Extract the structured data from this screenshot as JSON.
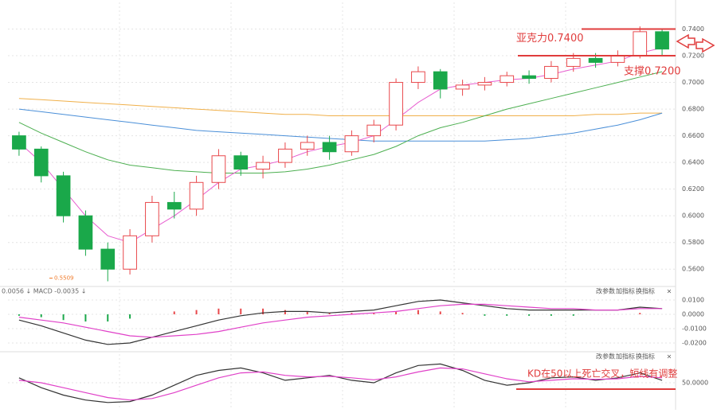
{
  "chart_data": [
    {
      "type": "candlestick",
      "categories": [
        null,
        null,
        null,
        null,
        null,
        null,
        null,
        null,
        null,
        null,
        null,
        null,
        null,
        null,
        null,
        null,
        null,
        null,
        null,
        null,
        null,
        null,
        null,
        null,
        null,
        null,
        null,
        null,
        null,
        null
      ],
      "open": [
        0.66,
        0.65,
        0.63,
        0.6,
        0.575,
        0.56,
        0.585,
        0.61,
        0.605,
        0.625,
        0.645,
        0.635,
        0.64,
        0.65,
        0.655,
        0.648,
        0.66,
        0.668,
        0.7,
        0.708,
        0.695,
        0.698,
        0.7,
        0.705,
        0.703,
        0.712,
        0.718,
        0.715,
        0.72,
        0.738
      ],
      "high": [
        0.663,
        0.652,
        0.633,
        0.604,
        0.58,
        0.59,
        0.615,
        0.618,
        0.63,
        0.65,
        0.648,
        0.645,
        0.655,
        0.66,
        0.66,
        0.664,
        0.672,
        0.703,
        0.712,
        0.71,
        0.702,
        0.704,
        0.708,
        0.709,
        0.716,
        0.722,
        0.722,
        0.724,
        0.742,
        0.74
      ],
      "low": [
        0.645,
        0.625,
        0.595,
        0.57,
        0.5509,
        0.556,
        0.58,
        0.598,
        0.6,
        0.62,
        0.63,
        0.628,
        0.636,
        0.645,
        0.642,
        0.645,
        0.655,
        0.664,
        0.695,
        0.688,
        0.69,
        0.694,
        0.697,
        0.699,
        0.7,
        0.708,
        0.711,
        0.712,
        0.718,
        0.72
      ],
      "close": [
        0.65,
        0.63,
        0.6,
        0.575,
        0.56,
        0.585,
        0.61,
        0.605,
        0.625,
        0.645,
        0.635,
        0.64,
        0.65,
        0.655,
        0.648,
        0.66,
        0.668,
        0.7,
        0.708,
        0.695,
        0.698,
        0.7,
        0.705,
        0.703,
        0.712,
        0.718,
        0.715,
        0.72,
        0.738,
        0.725
      ],
      "up_color": "#e8484b",
      "down_color": "#1aa84a",
      "series": [
        {
          "color": "#f0b04a",
          "values": [
            0.688,
            0.687,
            0.686,
            0.685,
            0.684,
            0.683,
            0.682,
            0.681,
            0.68,
            0.679,
            0.678,
            0.677,
            0.676,
            0.676,
            0.675,
            0.675,
            0.675,
            0.675,
            0.675,
            0.675,
            0.675,
            0.675,
            0.675,
            0.675,
            0.675,
            0.675,
            0.676,
            0.676,
            0.677,
            0.677
          ]
        },
        {
          "color": "#4a8fd8",
          "values": [
            0.68,
            0.678,
            0.676,
            0.674,
            0.672,
            0.67,
            0.668,
            0.666,
            0.664,
            0.663,
            0.662,
            0.661,
            0.66,
            0.659,
            0.658,
            0.657,
            0.656,
            0.656,
            0.656,
            0.656,
            0.656,
            0.656,
            0.657,
            0.658,
            0.66,
            0.662,
            0.665,
            0.668,
            0.672,
            0.677
          ]
        },
        {
          "color": "#4caf50",
          "values": [
            0.67,
            0.662,
            0.655,
            0.648,
            0.642,
            0.638,
            0.636,
            0.634,
            0.633,
            0.632,
            0.632,
            0.632,
            0.633,
            0.635,
            0.638,
            0.642,
            0.646,
            0.652,
            0.66,
            0.666,
            0.67,
            0.675,
            0.68,
            0.684,
            0.688,
            0.692,
            0.696,
            0.7,
            0.704,
            0.708
          ]
        },
        {
          "color": "#e85fd0",
          "values": [
            0.655,
            0.64,
            0.62,
            0.6,
            0.585,
            0.58,
            0.59,
            0.6,
            0.612,
            0.625,
            0.635,
            0.638,
            0.642,
            0.648,
            0.652,
            0.655,
            0.66,
            0.672,
            0.685,
            0.695,
            0.698,
            0.7,
            0.702,
            0.703,
            0.706,
            0.71,
            0.713,
            0.716,
            0.722,
            0.726
          ]
        }
      ],
      "ylim": [
        0.55,
        0.757
      ],
      "yticks": [
        {
          "value": 0.56,
          "label": "0.5600"
        },
        {
          "value": 0.58,
          "label": "0.5800"
        },
        {
          "value": 0.6,
          "label": "0.6000"
        },
        {
          "value": 0.62,
          "label": "0.6200"
        },
        {
          "value": 0.64,
          "label": "0.6400"
        },
        {
          "value": 0.66,
          "label": "0.6600"
        },
        {
          "value": 0.68,
          "label": "0.6800"
        },
        {
          "value": 0.7,
          "label": "0.7000"
        },
        {
          "value": 0.72,
          "label": "0.7200"
        },
        {
          "value": 0.74,
          "label": "0.7400"
        }
      ],
      "grid": true,
      "annotations": [
        {
          "text": "亚克力0.7400",
          "value": 0.74,
          "color": "#e03c3c"
        },
        {
          "text": "支撑0.7200",
          "value": 0.72,
          "color": "#e03c3c"
        },
        {
          "text": "0.5509",
          "value": 0.5509,
          "color": "#f07a2a"
        }
      ]
    },
    {
      "type": "macd",
      "header": "0.0056 ↓ MACD -0.0035 ↓",
      "buttons": [
        "改参数",
        "加指标",
        "换指标",
        "×"
      ],
      "ylim": [
        -0.025,
        0.015
      ],
      "yticks": [
        {
          "value": 0.01,
          "label": "0.0100"
        },
        {
          "value": 0,
          "label": "0.0000"
        },
        {
          "value": -0.01,
          "label": "-0.0100"
        },
        {
          "value": -0.02,
          "label": "-0.0200"
        }
      ],
      "series": [
        {
          "color": "#333333",
          "values": [
            -0.004,
            -0.008,
            -0.013,
            -0.018,
            -0.021,
            -0.02,
            -0.016,
            -0.012,
            -0.008,
            -0.004,
            -0.001,
            0.001,
            0.002,
            0.002,
            0.001,
            0.002,
            0.003,
            0.006,
            0.009,
            0.01,
            0.008,
            0.006,
            0.004,
            0.003,
            0.003,
            0.003,
            0.003,
            0.003,
            0.005,
            0.004
          ]
        },
        {
          "color": "#e040c8",
          "values": [
            -0.002,
            -0.004,
            -0.006,
            -0.009,
            -0.012,
            -0.015,
            -0.016,
            -0.015,
            -0.014,
            -0.012,
            -0.009,
            -0.006,
            -0.004,
            -0.002,
            -0.001,
            0,
            0.001,
            0.002,
            0.004,
            0.006,
            0.007,
            0.007,
            0.006,
            0.005,
            0.004,
            0.004,
            0.003,
            0.003,
            0.004,
            0.004
          ]
        }
      ],
      "bars": {
        "up_color": "#e8484b",
        "down_color": "#1aa84a",
        "values": [
          -0.001,
          -0.002,
          -0.004,
          -0.005,
          -0.005,
          -0.003,
          0,
          0.002,
          0.003,
          0.004,
          0.004,
          0.004,
          0.003,
          0.002,
          0.001,
          0.001,
          0.001,
          0.002,
          0.003,
          0.002,
          0.001,
          -0.001,
          -0.001,
          -0.001,
          -0.001,
          -0.001,
          0,
          0,
          0.001,
          0
        ]
      }
    },
    {
      "type": "kd",
      "buttons": [
        "改参数",
        "加指标",
        "换指标",
        "×"
      ],
      "ylim": [
        0,
        100
      ],
      "yticks": [
        {
          "value": 50,
          "label": "50.0000"
        }
      ],
      "series": [
        {
          "color": "#333333",
          "values": [
            60,
            40,
            25,
            15,
            10,
            12,
            25,
            45,
            65,
            75,
            80,
            70,
            55,
            60,
            65,
            55,
            50,
            70,
            85,
            88,
            75,
            55,
            45,
            50,
            60,
            62,
            55,
            60,
            70,
            55
          ]
        },
        {
          "color": "#e040c8",
          "values": [
            55,
            50,
            40,
            30,
            20,
            15,
            18,
            30,
            45,
            60,
            70,
            72,
            65,
            62,
            63,
            60,
            56,
            62,
            72,
            80,
            78,
            68,
            58,
            52,
            55,
            58,
            57,
            58,
            63,
            60
          ]
        }
      ],
      "annotations": [
        {
          "text": "KD在50以上死亡交叉，短线有调整",
          "value": 50,
          "color": "#e03c3c"
        }
      ]
    }
  ]
}
